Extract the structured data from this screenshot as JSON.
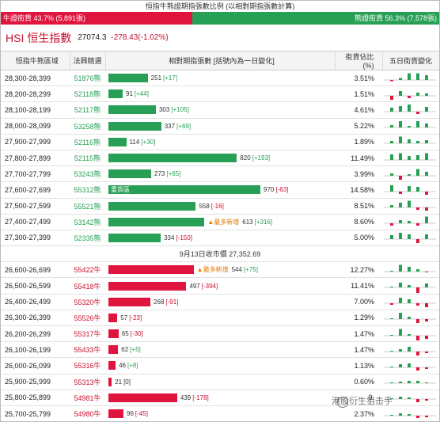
{
  "ratio": {
    "title": "恒指牛熊證期指張數比例 (以相對期指張數計算)",
    "bull_text": "牛證街貨 43.7% (5,891張)",
    "bear_text": "熊證街貨 56.3% (7,578張)",
    "bull_fraction": 0.437,
    "bull_color": "#e0153d",
    "bear_color": "#27a055"
  },
  "index": {
    "name": "HSI 恒生指數",
    "value": "27074.3",
    "change": "-278.43(-1.02%)"
  },
  "columns": {
    "range": "恒指牛熊區域",
    "code": "法興精選",
    "bar": "相對期指張數 [括號內為一日變化]",
    "pct": "街貨佔比(%)",
    "spark": "五日街貨變化"
  },
  "separator": "9月13日收市價 27,352.69",
  "max_count": 970,
  "bear_rows": [
    {
      "range": "28,300-28,399",
      "code": "51876熊",
      "count": 251,
      "count_text": "251",
      "change": "[+17]",
      "pct": "3.51%",
      "inner": "",
      "tag": "",
      "spark": [
        -0.15,
        0.25,
        0.85,
        0.85,
        0.6
      ]
    },
    {
      "range": "28,200-28,299",
      "code": "52118熊",
      "count": 91,
      "count_text": "91",
      "change": "[+44]",
      "pct": "1.51%",
      "inner": "",
      "tag": "",
      "spark": [
        -0.5,
        0.6,
        -0.3,
        0.4,
        0.3
      ]
    },
    {
      "range": "28,100-28,199",
      "code": "52117熊",
      "count": 303,
      "count_text": "303",
      "change": "[+105]",
      "pct": "4.61%",
      "inner": "",
      "tag": "",
      "spark": [
        0.5,
        0.7,
        0.9,
        -0.3,
        0.6
      ]
    },
    {
      "range": "28,000-28,099",
      "code": "53258熊",
      "count": 337,
      "count_text": "337",
      "change": "[+69]",
      "pct": "5.22%",
      "inner": "",
      "tag": "",
      "spark": [
        0.3,
        0.8,
        0.2,
        0.8,
        0.5
      ]
    },
    {
      "range": "27,900-27,999",
      "code": "52116熊",
      "count": 114,
      "count_text": "114",
      "change": "[+30]",
      "pct": "1.89%",
      "inner": "",
      "tag": "",
      "spark": [
        0.3,
        0.85,
        0.5,
        0.3,
        0.4
      ]
    },
    {
      "range": "27,800-27,899",
      "code": "52115熊",
      "count": 820,
      "count_text": "820",
      "change": "[+193]",
      "pct": "11.49%",
      "inner": "",
      "tag": "",
      "spark": [
        0.7,
        0.85,
        0.5,
        0.6,
        0.85
      ]
    },
    {
      "range": "27,700-27,799",
      "code": "53243熊",
      "count": 273,
      "count_text": "273",
      "change": "[+65]",
      "pct": "3.99%",
      "inner": "",
      "tag": "",
      "spark": [
        0.3,
        -0.5,
        0.2,
        0.85,
        0.5
      ]
    },
    {
      "range": "27,600-27,699",
      "code": "55312熊",
      "count": 970,
      "count_text": "970",
      "change": "[-63]",
      "pct": "14.58%",
      "inner": "重貨區",
      "tag": "",
      "spark": [
        0.8,
        -0.3,
        0.7,
        0.6,
        -0.4
      ]
    },
    {
      "range": "27,500-27,599",
      "code": "55521熊",
      "count": 558,
      "count_text": "558",
      "change": "[-16]",
      "pct": "8.51%",
      "inner": "",
      "tag": "",
      "spark": [
        0.3,
        0.6,
        0.85,
        -0.3,
        -0.4
      ]
    },
    {
      "range": "27,400-27,499",
      "code": "53142熊",
      "count": 613,
      "count_text": "613",
      "change": "[+316]",
      "pct": "8.60%",
      "inner": "",
      "tag": "▲最多新增",
      "spark": [
        -0.3,
        0.4,
        0.3,
        -0.3,
        0.85
      ]
    },
    {
      "range": "27,300-27,399",
      "code": "52335熊",
      "count": 334,
      "count_text": "334",
      "change": "[-150]",
      "pct": "5.00%",
      "inner": "",
      "tag": "",
      "spark": [
        0.5,
        0.8,
        0.6,
        -0.5,
        0.6
      ]
    }
  ],
  "bull_rows": [
    {
      "range": "26,600-26,699",
      "code": "55422牛",
      "count": 544,
      "count_text": "544",
      "change": "[+75]",
      "pct": "12.27%",
      "inner": "",
      "tag": "▲最多新增",
      "spark": [
        0.1,
        0.85,
        0.6,
        0.3,
        -0.1
      ]
    },
    {
      "range": "26,500-26,599",
      "code": "55418牛",
      "count": 497,
      "count_text": "497",
      "change": "[-394]",
      "pct": "11.41%",
      "inner": "",
      "tag": "",
      "spark": [
        0.1,
        0.6,
        0.3,
        -0.85,
        0.5
      ]
    },
    {
      "range": "26,400-26,499",
      "code": "55320牛",
      "count": 268,
      "count_text": "268",
      "change": "[-91]",
      "pct": "7.00%",
      "inner": "",
      "tag": "",
      "spark": [
        -0.2,
        0.7,
        0.5,
        -0.3,
        -0.5
      ]
    },
    {
      "range": "26,300-26,399",
      "code": "55526牛",
      "count": 57,
      "count_text": "57",
      "change": "[-23]",
      "pct": "1.29%",
      "inner": "",
      "tag": "",
      "spark": [
        0.1,
        0.8,
        0.3,
        -0.5,
        -0.3
      ]
    },
    {
      "range": "26,200-26,299",
      "code": "55317牛",
      "count": 65,
      "count_text": "65",
      "change": "[-30]",
      "pct": "1.47%",
      "inner": "",
      "tag": "",
      "spark": [
        0.1,
        0.85,
        0.2,
        -0.6,
        -0.4
      ]
    },
    {
      "range": "26,100-26,199",
      "code": "55433牛",
      "count": 62,
      "count_text": "62",
      "change": "[+5]",
      "pct": "1.47%",
      "inner": "",
      "tag": "",
      "spark": [
        0.1,
        0.3,
        0.6,
        -0.5,
        -0.2
      ]
    },
    {
      "range": "26,000-26,099",
      "code": "55316牛",
      "count": 46,
      "count_text": "46",
      "change": "[+8]",
      "pct": "1.13%",
      "inner": "",
      "tag": "",
      "spark": [
        0.1,
        0.4,
        0.5,
        -0.4,
        -0.2
      ]
    },
    {
      "range": "25,900-25,999",
      "code": "55313牛",
      "count": 21,
      "count_text": "21",
      "change": "[0]",
      "pct": "0.60%",
      "inner": "",
      "tag": "",
      "spark": [
        0.1,
        0.2,
        0.3,
        0.3,
        0.1
      ]
    },
    {
      "range": "25,800-25,899",
      "code": "54981牛",
      "count": 439,
      "count_text": "439",
      "change": "[-178]",
      "pct": "9.",
      "inner": "",
      "tag": "",
      "spark": [
        0.1,
        0.3,
        0.2,
        -0.4,
        -0.2
      ]
    },
    {
      "range": "25,700-25,799",
      "code": "54980牛",
      "count": 96,
      "count_text": "96",
      "change": "[-45]",
      "pct": "2.37%",
      "inner": "",
      "tag": "",
      "spark": [
        0.1,
        0.3,
        0.2,
        -0.3,
        -0.2
      ]
    }
  ],
  "watermark": "港股衍生狙击手"
}
